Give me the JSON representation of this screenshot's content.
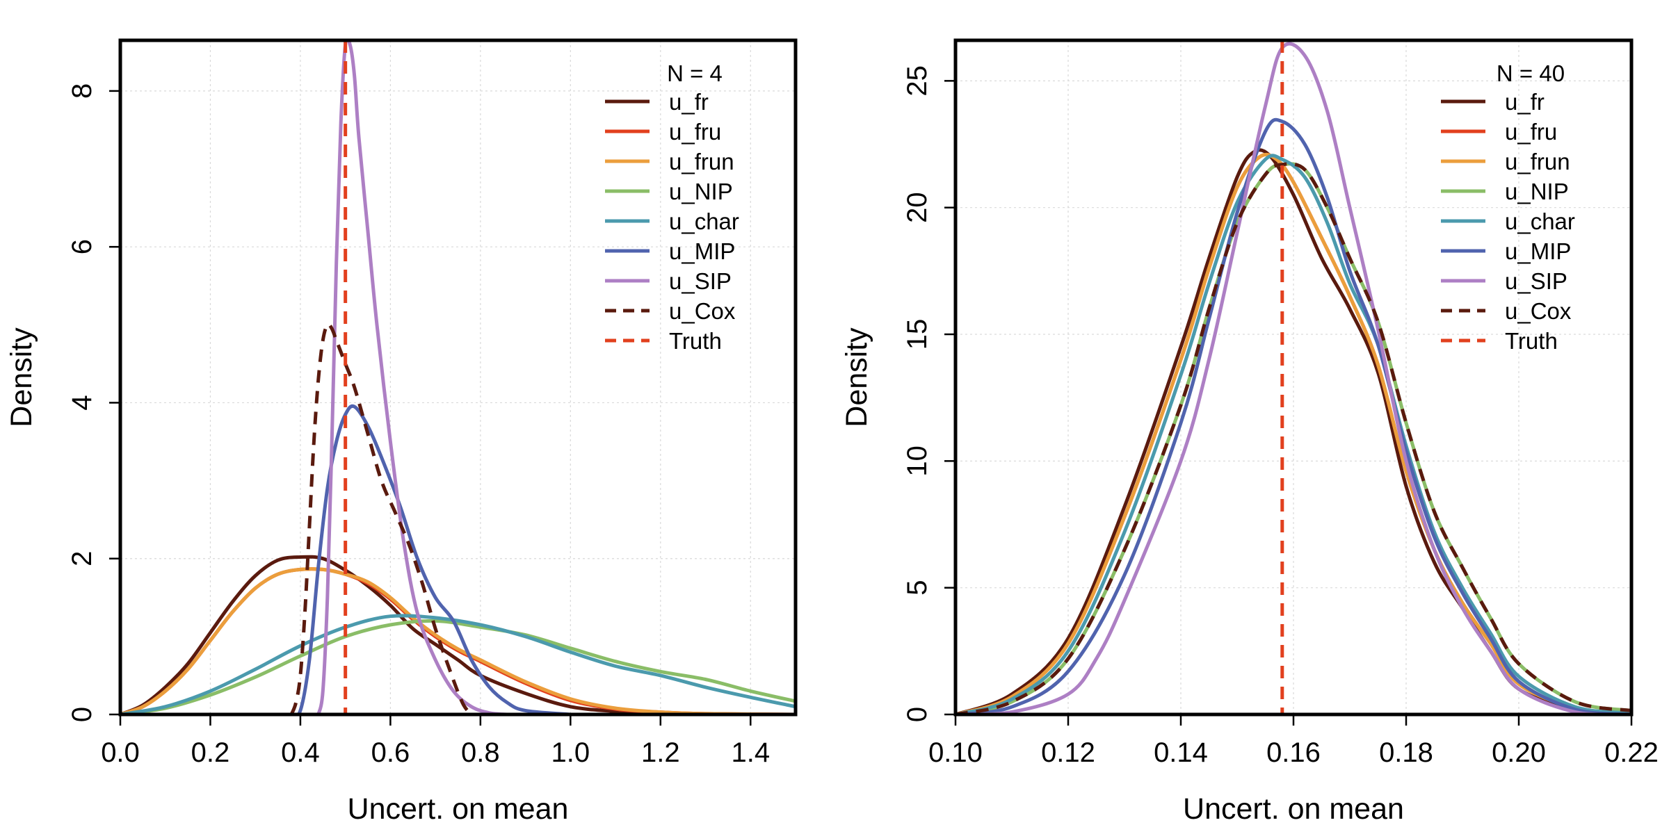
{
  "chart_data": [
    {
      "type": "line",
      "title": "",
      "xlabel": "Uncert. on mean",
      "ylabel": "Density",
      "xlim": [
        0.0,
        1.5
      ],
      "ylim": [
        0,
        8.65
      ],
      "xticks": [
        0.0,
        0.2,
        0.4,
        0.6,
        0.8,
        1.0,
        1.2,
        1.4
      ],
      "xtick_labels": [
        "0.0",
        "0.2",
        "0.4",
        "0.6",
        "0.8",
        "1.0",
        "1.2",
        "1.4"
      ],
      "yticks": [
        0,
        2,
        4,
        6,
        8
      ],
      "ytick_labels": [
        "0",
        "2",
        "4",
        "6",
        "8"
      ],
      "grid": true,
      "legend_title": "N = 4",
      "legend_position": "top-right",
      "truth": 0.5,
      "series": [
        {
          "name": "u_fr",
          "color": "#5a1a0e",
          "dash": false,
          "x": [
            0,
            0.05,
            0.1,
            0.15,
            0.2,
            0.25,
            0.3,
            0.35,
            0.4,
            0.45,
            0.5,
            0.55,
            0.6,
            0.65,
            0.7,
            0.75,
            0.8,
            0.9,
            1.0,
            1.1,
            1.2,
            1.3,
            1.5
          ],
          "y": [
            0,
            0.12,
            0.35,
            0.65,
            1.05,
            1.45,
            1.78,
            1.98,
            2.02,
            2.0,
            1.85,
            1.65,
            1.4,
            1.1,
            0.9,
            0.7,
            0.5,
            0.27,
            0.1,
            0.04,
            0.01,
            0,
            0
          ]
        },
        {
          "name": "u_fru",
          "color": "#e2401e",
          "dash": false,
          "x": [
            0,
            0.05,
            0.1,
            0.15,
            0.2,
            0.25,
            0.3,
            0.35,
            0.4,
            0.45,
            0.5,
            0.55,
            0.6,
            0.65,
            0.7,
            0.75,
            0.8,
            0.9,
            1.0,
            1.1,
            1.2,
            1.3,
            1.5
          ],
          "y": [
            0,
            0.1,
            0.3,
            0.58,
            0.95,
            1.32,
            1.62,
            1.8,
            1.86,
            1.86,
            1.8,
            1.68,
            1.48,
            1.22,
            1.0,
            0.82,
            0.68,
            0.4,
            0.18,
            0.07,
            0.03,
            0.01,
            0
          ]
        },
        {
          "name": "u_frun",
          "color": "#eb9e3c",
          "dash": false,
          "x": [
            0,
            0.05,
            0.1,
            0.15,
            0.2,
            0.25,
            0.3,
            0.35,
            0.4,
            0.45,
            0.5,
            0.55,
            0.6,
            0.65,
            0.7,
            0.75,
            0.8,
            0.9,
            1.0,
            1.1,
            1.2,
            1.3,
            1.5
          ],
          "y": [
            0,
            0.1,
            0.3,
            0.58,
            0.95,
            1.32,
            1.62,
            1.8,
            1.86,
            1.86,
            1.8,
            1.7,
            1.5,
            1.24,
            1.02,
            0.84,
            0.7,
            0.42,
            0.2,
            0.08,
            0.03,
            0.01,
            0
          ]
        },
        {
          "name": "u_NIP",
          "color": "#8abd67",
          "dash": false,
          "x": [
            0,
            0.1,
            0.2,
            0.3,
            0.4,
            0.5,
            0.6,
            0.7,
            0.8,
            0.9,
            1.0,
            1.1,
            1.2,
            1.3,
            1.4,
            1.5
          ],
          "y": [
            0,
            0.08,
            0.25,
            0.48,
            0.75,
            1.0,
            1.15,
            1.2,
            1.12,
            1.02,
            0.85,
            0.68,
            0.55,
            0.45,
            0.3,
            0.17
          ]
        },
        {
          "name": "u_char",
          "color": "#4b9aad",
          "dash": false,
          "x": [
            0,
            0.1,
            0.2,
            0.3,
            0.4,
            0.5,
            0.6,
            0.7,
            0.8,
            0.9,
            1.0,
            1.1,
            1.2,
            1.3,
            1.4,
            1.5
          ],
          "y": [
            0,
            0.1,
            0.3,
            0.58,
            0.88,
            1.12,
            1.26,
            1.24,
            1.15,
            1.0,
            0.8,
            0.62,
            0.5,
            0.35,
            0.22,
            0.1
          ]
        },
        {
          "name": "u_MIP",
          "color": "#5063ae",
          "dash": false,
          "x": [
            0.38,
            0.4,
            0.42,
            0.44,
            0.46,
            0.48,
            0.5,
            0.52,
            0.55,
            0.58,
            0.62,
            0.66,
            0.7,
            0.74,
            0.78,
            0.82,
            0.86,
            0.9,
            1.0
          ],
          "y": [
            0,
            0.05,
            0.7,
            1.9,
            2.9,
            3.5,
            3.85,
            3.95,
            3.7,
            3.3,
            2.7,
            2.0,
            1.5,
            1.2,
            0.7,
            0.35,
            0.15,
            0.05,
            0
          ]
        },
        {
          "name": "u_SIP",
          "color": "#ad7fc4",
          "dash": false,
          "x": [
            0.44,
            0.45,
            0.46,
            0.47,
            0.48,
            0.49,
            0.5,
            0.51,
            0.52,
            0.53,
            0.55,
            0.57,
            0.6,
            0.63,
            0.66,
            0.7,
            0.74,
            0.78,
            0.82,
            0.86
          ],
          "y": [
            0,
            0.3,
            1.5,
            3.5,
            5.8,
            7.6,
            8.6,
            8.6,
            8.2,
            7.4,
            6.2,
            5.0,
            3.5,
            2.2,
            1.3,
            0.7,
            0.3,
            0.1,
            0.02,
            0
          ]
        },
        {
          "name": "u_Cox",
          "color": "#5a1a0e",
          "dash": true,
          "x": [
            0.38,
            0.39,
            0.4,
            0.41,
            0.42,
            0.43,
            0.44,
            0.45,
            0.46,
            0.47,
            0.48,
            0.5,
            0.52,
            0.55,
            0.58,
            0.61,
            0.64,
            0.67,
            0.7,
            0.73,
            0.76,
            0.78
          ],
          "y": [
            0,
            0.15,
            0.5,
            1.3,
            2.4,
            3.5,
            4.3,
            4.8,
            5.0,
            4.95,
            4.8,
            4.5,
            4.2,
            3.6,
            3.0,
            2.6,
            2.2,
            1.7,
            1.1,
            0.6,
            0.15,
            0
          ]
        }
      ]
    },
    {
      "type": "line",
      "title": "",
      "xlabel": "Uncert. on mean",
      "ylabel": "Density",
      "xlim": [
        0.1,
        0.22
      ],
      "ylim": [
        0,
        26.6
      ],
      "xticks": [
        0.1,
        0.12,
        0.14,
        0.16,
        0.18,
        0.2,
        0.22
      ],
      "xtick_labels": [
        "0.10",
        "0.12",
        "0.14",
        "0.16",
        "0.18",
        "0.20",
        "0.22"
      ],
      "yticks": [
        0,
        5,
        10,
        15,
        20,
        25
      ],
      "ytick_labels": [
        "0",
        "5",
        "10",
        "15",
        "20",
        "25"
      ],
      "grid": true,
      "legend_title": "N = 40",
      "legend_position": "top-right",
      "truth": 0.158,
      "series": [
        {
          "name": "u_fr",
          "color": "#5a1a0e",
          "dash": false,
          "x": [
            0.1,
            0.11,
            0.12,
            0.13,
            0.14,
            0.145,
            0.15,
            0.153,
            0.156,
            0.16,
            0.165,
            0.17,
            0.175,
            0.18,
            0.185,
            0.19,
            0.195,
            0.2,
            0.21,
            0.22
          ],
          "y": [
            0,
            0.8,
            3.0,
            8.2,
            14.5,
            18.0,
            21.2,
            22.2,
            22.0,
            20.5,
            18.0,
            16.0,
            13.5,
            9.0,
            6.0,
            4.2,
            2.5,
            1.0,
            0.2,
            0
          ]
        },
        {
          "name": "u_fru",
          "color": "#e2401e",
          "dash": false,
          "x": [
            0.1,
            0.11,
            0.12,
            0.13,
            0.14,
            0.145,
            0.15,
            0.154,
            0.157,
            0.16,
            0.165,
            0.17,
            0.175,
            0.18,
            0.185,
            0.19,
            0.195,
            0.2,
            0.21,
            0.22
          ],
          "y": [
            0,
            0.7,
            2.8,
            7.8,
            14.0,
            17.6,
            20.8,
            22.0,
            21.9,
            21.0,
            18.8,
            16.5,
            13.8,
            9.6,
            6.5,
            4.4,
            2.8,
            1.2,
            0.25,
            0
          ]
        },
        {
          "name": "u_frun",
          "color": "#eb9e3c",
          "dash": false,
          "x": [
            0.1,
            0.11,
            0.12,
            0.13,
            0.14,
            0.145,
            0.15,
            0.154,
            0.157,
            0.16,
            0.165,
            0.17,
            0.175,
            0.18,
            0.185,
            0.19,
            0.195,
            0.2,
            0.21,
            0.22
          ],
          "y": [
            0,
            0.7,
            2.8,
            7.8,
            14.0,
            17.6,
            20.8,
            22.0,
            21.9,
            21.0,
            18.8,
            16.5,
            13.8,
            9.6,
            6.5,
            4.4,
            2.8,
            1.2,
            0.25,
            0
          ]
        },
        {
          "name": "u_NIP",
          "color": "#8abd67",
          "dash": false,
          "x": [
            0.1,
            0.11,
            0.12,
            0.13,
            0.14,
            0.145,
            0.15,
            0.155,
            0.158,
            0.162,
            0.166,
            0.17,
            0.175,
            0.18,
            0.185,
            0.19,
            0.195,
            0.2,
            0.21,
            0.22
          ],
          "y": [
            0,
            0.5,
            2.2,
            6.5,
            12.2,
            16.0,
            19.4,
            21.3,
            21.7,
            21.5,
            20.0,
            18.0,
            15.5,
            11.5,
            8.0,
            5.8,
            3.8,
            2.0,
            0.5,
            0.15
          ]
        },
        {
          "name": "u_char",
          "color": "#4b9aad",
          "dash": false,
          "x": [
            0.1,
            0.11,
            0.12,
            0.13,
            0.14,
            0.145,
            0.15,
            0.155,
            0.158,
            0.162,
            0.166,
            0.17,
            0.175,
            0.18,
            0.185,
            0.19,
            0.195,
            0.2,
            0.21,
            0.22
          ],
          "y": [
            0,
            0.6,
            2.5,
            7.2,
            13.4,
            17.0,
            20.2,
            21.9,
            21.9,
            21.2,
            19.4,
            17.0,
            14.6,
            10.6,
            7.2,
            5.0,
            3.2,
            1.5,
            0.3,
            0.05
          ]
        },
        {
          "name": "u_MIP",
          "color": "#5063ae",
          "dash": false,
          "x": [
            0.1,
            0.11,
            0.12,
            0.13,
            0.14,
            0.145,
            0.15,
            0.155,
            0.158,
            0.162,
            0.166,
            0.17,
            0.175,
            0.18,
            0.185,
            0.19,
            0.195,
            0.2,
            0.21,
            0.22
          ],
          "y": [
            0,
            0.3,
            1.7,
            5.5,
            11.5,
            15.6,
            19.8,
            23.0,
            23.4,
            22.5,
            20.4,
            17.5,
            14.6,
            10.4,
            7.0,
            4.8,
            3.0,
            1.3,
            0.2,
            0
          ]
        },
        {
          "name": "u_SIP",
          "color": "#ad7fc4",
          "dash": false,
          "x": [
            0.1,
            0.11,
            0.12,
            0.125,
            0.13,
            0.14,
            0.145,
            0.15,
            0.155,
            0.158,
            0.162,
            0.166,
            0.17,
            0.175,
            0.18,
            0.185,
            0.19,
            0.195,
            0.2,
            0.21,
            0.22
          ],
          "y": [
            0,
            0.1,
            0.8,
            2.2,
            4.5,
            10.0,
            14.0,
            19.0,
            24.0,
            26.3,
            26.0,
            23.8,
            20.0,
            15.2,
            10.0,
            6.5,
            4.2,
            2.5,
            1.0,
            0.1,
            0
          ]
        },
        {
          "name": "u_Cox",
          "color": "#5a1a0e",
          "dash": true,
          "x": [
            0.1,
            0.11,
            0.12,
            0.13,
            0.14,
            0.145,
            0.15,
            0.155,
            0.158,
            0.162,
            0.166,
            0.17,
            0.175,
            0.18,
            0.185,
            0.19,
            0.195,
            0.2,
            0.21,
            0.22
          ],
          "y": [
            0,
            0.5,
            2.2,
            6.5,
            12.2,
            16.0,
            19.4,
            21.3,
            21.7,
            21.5,
            20.0,
            18.0,
            15.5,
            11.5,
            8.0,
            5.8,
            3.8,
            2.0,
            0.5,
            0.15
          ]
        }
      ],
      "truth_series": {
        "name": "Truth",
        "color": "#e2401e",
        "dash": true
      }
    }
  ],
  "legend_truth": {
    "name": "Truth",
    "color": "#e2401e"
  }
}
